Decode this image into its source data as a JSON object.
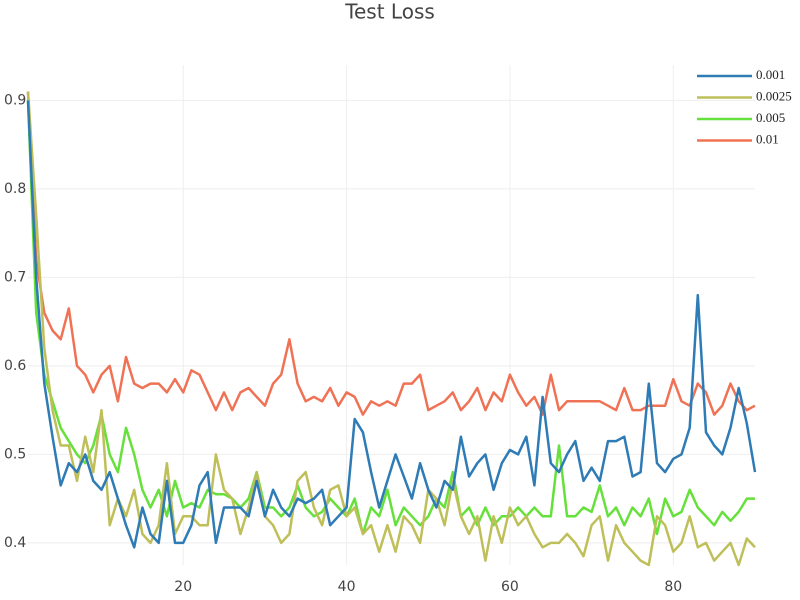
{
  "chart_data": {
    "type": "line",
    "title": "Test Loss",
    "x": [
      1,
      2,
      3,
      4,
      5,
      6,
      7,
      8,
      9,
      10,
      11,
      12,
      13,
      14,
      15,
      16,
      17,
      18,
      19,
      20,
      21,
      22,
      23,
      24,
      25,
      26,
      27,
      28,
      29,
      30,
      31,
      32,
      33,
      34,
      35,
      36,
      37,
      38,
      39,
      40,
      41,
      42,
      43,
      44,
      45,
      46,
      47,
      48,
      49,
      50,
      51,
      52,
      53,
      54,
      55,
      56,
      57,
      58,
      59,
      60,
      61,
      62,
      63,
      64,
      65,
      66,
      67,
      68,
      69,
      70,
      71,
      72,
      73,
      74,
      75,
      76,
      77,
      78,
      79,
      80,
      81,
      82,
      83,
      84,
      85,
      86,
      87,
      88,
      89,
      90
    ],
    "xlim": [
      1,
      90
    ],
    "xticks": [
      20,
      40,
      60,
      80
    ],
    "ylim": [
      0.375,
      0.94
    ],
    "yticks": [
      0.4,
      0.5,
      0.6,
      0.7,
      0.8,
      0.9
    ],
    "grid": true,
    "legend": "top-right",
    "series": [
      {
        "name": "0.001",
        "color": "#2e7bb5",
        "values": [
          0.9,
          0.7,
          0.58,
          0.52,
          0.465,
          0.49,
          0.48,
          0.5,
          0.47,
          0.46,
          0.48,
          0.45,
          0.42,
          0.395,
          0.44,
          0.41,
          0.4,
          0.47,
          0.4,
          0.4,
          0.42,
          0.465,
          0.48,
          0.4,
          0.44,
          0.44,
          0.44,
          0.43,
          0.47,
          0.43,
          0.46,
          0.44,
          0.43,
          0.45,
          0.445,
          0.45,
          0.46,
          0.42,
          0.43,
          0.44,
          0.54,
          0.525,
          0.48,
          0.44,
          0.47,
          0.5,
          0.475,
          0.45,
          0.49,
          0.46,
          0.44,
          0.47,
          0.46,
          0.52,
          0.475,
          0.49,
          0.5,
          0.46,
          0.49,
          0.505,
          0.5,
          0.52,
          0.465,
          0.565,
          0.49,
          0.48,
          0.5,
          0.515,
          0.47,
          0.485,
          0.47,
          0.515,
          0.515,
          0.52,
          0.475,
          0.48,
          0.58,
          0.49,
          0.48,
          0.495,
          0.5,
          0.53,
          0.68,
          0.525,
          0.51,
          0.5,
          0.53,
          0.575,
          0.535,
          0.48
        ]
      },
      {
        "name": "0.0025",
        "color": "#bfbf5a",
        "values": [
          0.91,
          0.77,
          0.62,
          0.55,
          0.51,
          0.51,
          0.47,
          0.52,
          0.48,
          0.55,
          0.42,
          0.45,
          0.43,
          0.46,
          0.41,
          0.4,
          0.42,
          0.49,
          0.41,
          0.43,
          0.43,
          0.42,
          0.42,
          0.5,
          0.46,
          0.45,
          0.41,
          0.44,
          0.48,
          0.43,
          0.42,
          0.4,
          0.41,
          0.47,
          0.48,
          0.44,
          0.42,
          0.46,
          0.465,
          0.43,
          0.44,
          0.41,
          0.42,
          0.39,
          0.42,
          0.39,
          0.43,
          0.42,
          0.4,
          0.46,
          0.45,
          0.42,
          0.47,
          0.43,
          0.41,
          0.43,
          0.38,
          0.43,
          0.4,
          0.44,
          0.42,
          0.43,
          0.41,
          0.395,
          0.4,
          0.4,
          0.41,
          0.4,
          0.385,
          0.42,
          0.43,
          0.38,
          0.42,
          0.4,
          0.39,
          0.38,
          0.375,
          0.43,
          0.42,
          0.39,
          0.4,
          0.43,
          0.395,
          0.4,
          0.38,
          0.39,
          0.4,
          0.375,
          0.405,
          0.395
        ]
      },
      {
        "name": "0.005",
        "color": "#66e03a",
        "values": [
          0.9,
          0.66,
          0.59,
          0.56,
          0.53,
          0.515,
          0.5,
          0.49,
          0.51,
          0.545,
          0.5,
          0.48,
          0.53,
          0.5,
          0.46,
          0.44,
          0.46,
          0.43,
          0.47,
          0.44,
          0.445,
          0.44,
          0.46,
          0.455,
          0.455,
          0.45,
          0.44,
          0.45,
          0.48,
          0.44,
          0.44,
          0.43,
          0.44,
          0.465,
          0.44,
          0.43,
          0.435,
          0.45,
          0.44,
          0.43,
          0.45,
          0.41,
          0.44,
          0.43,
          0.46,
          0.42,
          0.44,
          0.43,
          0.42,
          0.43,
          0.45,
          0.44,
          0.48,
          0.43,
          0.44,
          0.42,
          0.44,
          0.42,
          0.43,
          0.43,
          0.44,
          0.43,
          0.44,
          0.43,
          0.43,
          0.51,
          0.43,
          0.43,
          0.44,
          0.435,
          0.465,
          0.43,
          0.44,
          0.42,
          0.44,
          0.43,
          0.45,
          0.41,
          0.45,
          0.43,
          0.435,
          0.46,
          0.44,
          0.43,
          0.42,
          0.435,
          0.425,
          0.435,
          0.45,
          0.45
        ]
      },
      {
        "name": "0.01",
        "color": "#f07255",
        "values": [
          0.91,
          0.72,
          0.66,
          0.64,
          0.63,
          0.665,
          0.6,
          0.59,
          0.57,
          0.59,
          0.6,
          0.56,
          0.61,
          0.58,
          0.575,
          0.58,
          0.58,
          0.57,
          0.585,
          0.57,
          0.595,
          0.59,
          0.57,
          0.55,
          0.57,
          0.55,
          0.57,
          0.575,
          0.565,
          0.555,
          0.58,
          0.59,
          0.63,
          0.58,
          0.56,
          0.565,
          0.56,
          0.575,
          0.555,
          0.57,
          0.565,
          0.545,
          0.56,
          0.555,
          0.56,
          0.555,
          0.58,
          0.58,
          0.59,
          0.55,
          0.555,
          0.56,
          0.57,
          0.55,
          0.56,
          0.575,
          0.55,
          0.57,
          0.56,
          0.59,
          0.57,
          0.555,
          0.565,
          0.545,
          0.59,
          0.55,
          0.56,
          0.56,
          0.56,
          0.56,
          0.56,
          0.555,
          0.55,
          0.575,
          0.55,
          0.55,
          0.555,
          0.555,
          0.555,
          0.585,
          0.56,
          0.555,
          0.58,
          0.57,
          0.545,
          0.555,
          0.58,
          0.56,
          0.55,
          0.555
        ]
      }
    ]
  }
}
